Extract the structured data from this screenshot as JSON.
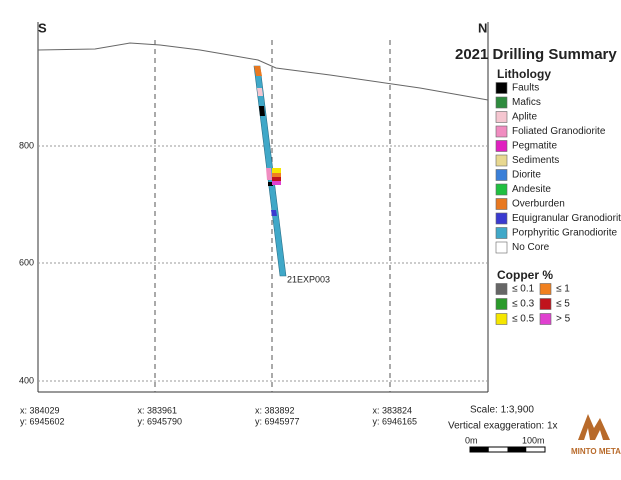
{
  "title": "2021 Drilling Summary",
  "compass": {
    "left": "S",
    "right": "N"
  },
  "elevation_ticks": [
    "800",
    "600",
    "400"
  ],
  "coordinates": [
    {
      "x": "x: 384029",
      "y": "y: 6945602"
    },
    {
      "x": "x: 383961",
      "y": "y: 6945790"
    },
    {
      "x": "x: 383892",
      "y": "y: 6945977"
    },
    {
      "x": "x: 383824",
      "y": "y: 6946165"
    }
  ],
  "hole_label": "21EXP003",
  "lithology": {
    "title": "Lithology",
    "items": [
      {
        "label": "Faults",
        "color": "#000000"
      },
      {
        "label": "Mafics",
        "color": "#2e8b3e"
      },
      {
        "label": "Aplite",
        "color": "#f5c6d0"
      },
      {
        "label": "Foliated Granodiorite",
        "color": "#f08cc0"
      },
      {
        "label": "Pegmatite",
        "color": "#e020c0"
      },
      {
        "label": "Sediments",
        "color": "#e8d890"
      },
      {
        "label": "Diorite",
        "color": "#3a7fd8"
      },
      {
        "label": "Andesite",
        "color": "#20c040"
      },
      {
        "label": "Overburden",
        "color": "#e87820"
      },
      {
        "label": "Equigranular Granodiorite",
        "color": "#3a3ad0"
      },
      {
        "label": "Porphyritic Granodiorite",
        "color": "#40a8c8"
      },
      {
        "label": "No Core",
        "color": "#ffffff"
      }
    ]
  },
  "copper": {
    "title": "Copper %",
    "items": [
      {
        "label": "≤ 0.1",
        "color": "#666666"
      },
      {
        "label": "≤ 1",
        "color": "#f08020"
      },
      {
        "label": "≤ 0.3",
        "color": "#2a9a2a"
      },
      {
        "label": "≤ 5",
        "color": "#c0141c"
      },
      {
        "label": "≤ 0.5",
        "color": "#f5e600"
      },
      {
        "label": "> 5",
        "color": "#e040d0"
      }
    ]
  },
  "scale": {
    "text": "Scale: 1:3,900",
    "exaggeration": "Vertical exaggeration: 1x",
    "bar_start": "0m",
    "bar_end": "100m"
  },
  "logo": "MINTO METALS"
}
